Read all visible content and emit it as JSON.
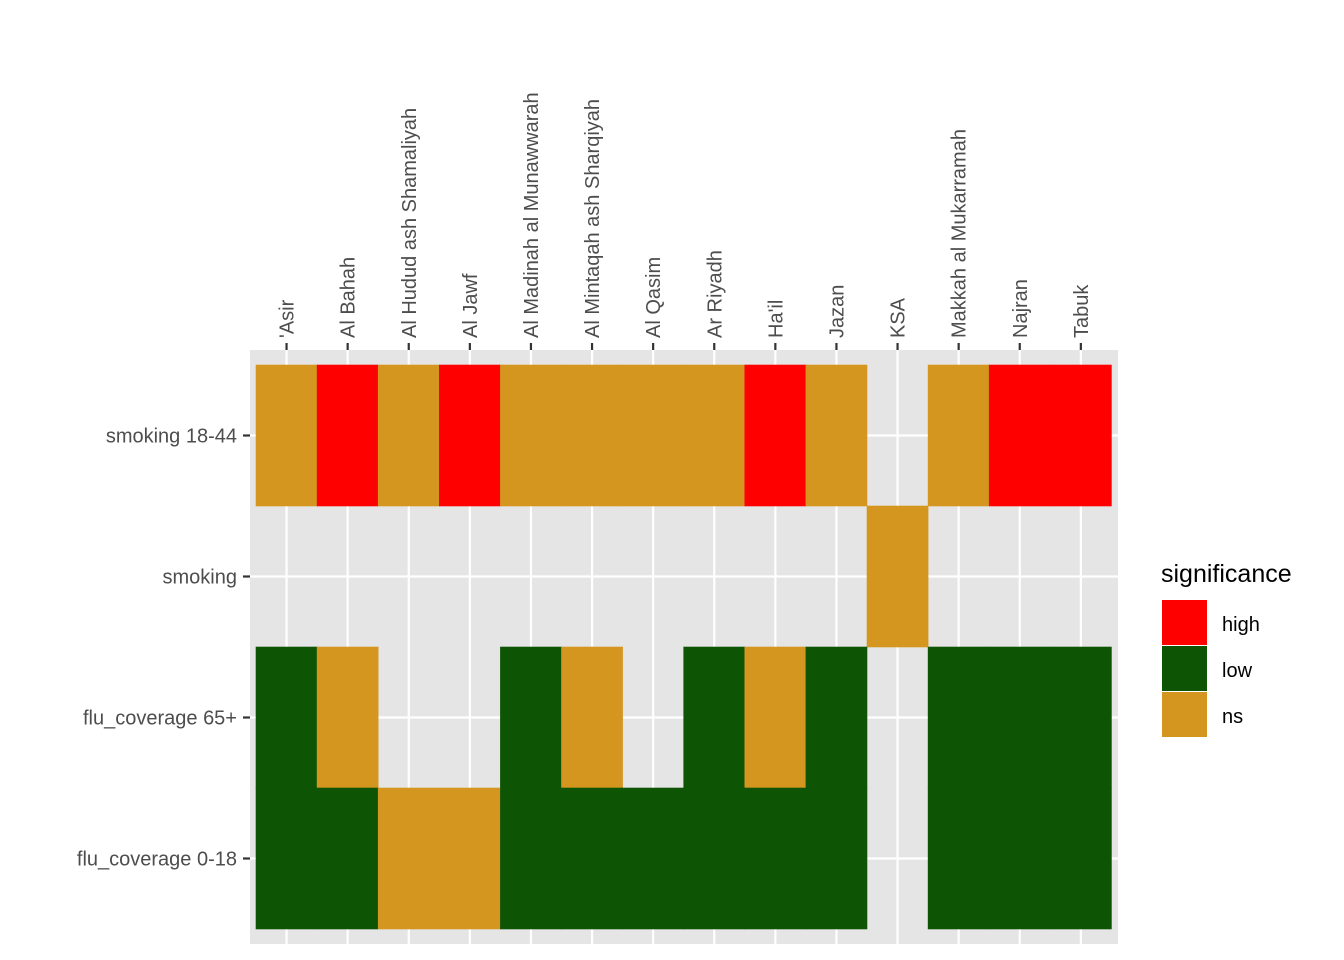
{
  "chart_data": {
    "type": "heatmap",
    "title": "",
    "xlabel": "",
    "ylabel": "",
    "x_position": "top",
    "categories_x": [
      "'Asir",
      "Al Bahah",
      "Al Hudud ash Shamaliyah",
      "Al Jawf",
      "Al Madinah al Munawwarah",
      "Al Mintaqah ash Sharqiyah",
      "Al Qasim",
      "Ar Riyadh",
      "Ha'il",
      "Jazan",
      "KSA",
      "Makkah al Mukarramah",
      "Najran",
      "Tabuk"
    ],
    "categories_y": [
      "smoking 18-44",
      "smoking",
      "flu_coverage 65+",
      "flu_coverage 0-18"
    ],
    "cells": {
      "smoking 18-44": [
        "ns",
        "high",
        "ns",
        "high",
        "ns",
        "ns",
        "ns",
        "ns",
        "high",
        "ns",
        null,
        "ns",
        "high",
        "high"
      ],
      "smoking": [
        null,
        null,
        null,
        null,
        null,
        null,
        null,
        null,
        null,
        null,
        "ns",
        null,
        null,
        null
      ],
      "flu_coverage 65+": [
        "low",
        "ns",
        null,
        null,
        "low",
        "ns",
        null,
        "low",
        "ns",
        "low",
        null,
        "low",
        "low",
        "low"
      ],
      "flu_coverage 0-18": [
        "low",
        "low",
        "ns",
        "ns",
        "low",
        "low",
        "low",
        "low",
        "low",
        "low",
        null,
        "low",
        "low",
        "low"
      ]
    },
    "legend": {
      "title": "significance",
      "position": "right",
      "items": [
        {
          "key": "high",
          "label": "high",
          "color": "#ff0000"
        },
        {
          "key": "low",
          "label": "low",
          "color": "#0d5505"
        },
        {
          "key": "ns",
          "label": "ns",
          "color": "#d4961e"
        }
      ]
    },
    "panel_background": "#e5e5e5",
    "grid_color": "#ffffff"
  }
}
